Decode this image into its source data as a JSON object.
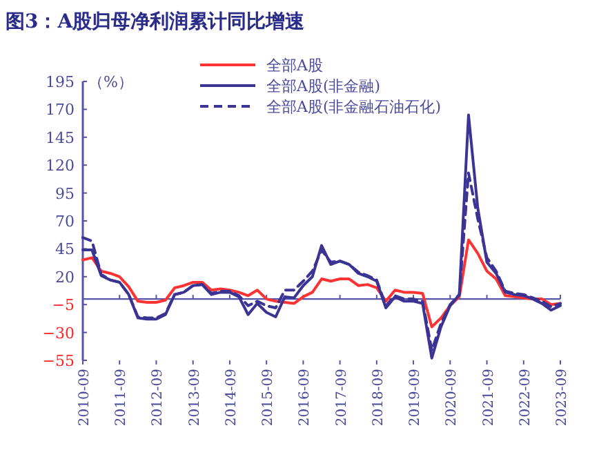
{
  "chart_data": {
    "type": "line",
    "title": "图3：A股归母净利润累计同比增速",
    "ylabel": "（%）",
    "x": [
      "2010-09",
      "2010-12",
      "2011-03",
      "2011-06",
      "2011-09",
      "2011-12",
      "2012-03",
      "2012-06",
      "2012-09",
      "2012-12",
      "2013-03",
      "2013-06",
      "2013-09",
      "2013-12",
      "2014-03",
      "2014-06",
      "2014-09",
      "2014-12",
      "2015-03",
      "2015-06",
      "2015-09",
      "2015-12",
      "2016-03",
      "2016-06",
      "2016-09",
      "2016-12",
      "2017-03",
      "2017-06",
      "2017-09",
      "2017-12",
      "2018-03",
      "2018-06",
      "2018-09",
      "2018-12",
      "2019-03",
      "2019-06",
      "2019-09",
      "2019-12",
      "2020-03",
      "2020-06",
      "2020-09",
      "2020-12",
      "2021-03",
      "2021-06",
      "2021-09",
      "2021-12",
      "2022-03",
      "2022-06",
      "2022-09",
      "2022-12",
      "2023-03",
      "2023-06",
      "2023-09"
    ],
    "series": [
      {
        "name": "全部A股",
        "color": "#ff3333",
        "line_style": "solid",
        "values": [
          35,
          37,
          25,
          23,
          20,
          11,
          -2,
          -3,
          -3,
          -1,
          10,
          12,
          15,
          15,
          8,
          9,
          8,
          6,
          3,
          8,
          0,
          -2,
          -3,
          -4,
          2,
          6,
          18,
          16,
          18,
          18,
          12,
          13,
          10,
          -2,
          8,
          6,
          6,
          5,
          -25,
          -17,
          -6,
          2,
          53,
          41,
          25,
          18,
          3,
          2,
          1,
          0,
          0,
          -5,
          -4
        ]
      },
      {
        "name": "全部A股(非金融)",
        "color": "#3b3494",
        "line_style": "solid",
        "values": [
          44,
          44,
          21,
          17,
          15,
          4,
          -17,
          -18,
          -18,
          -14,
          4,
          6,
          12,
          13,
          4,
          6,
          6,
          2,
          -14,
          -4,
          -12,
          -16,
          2,
          1,
          12,
          20,
          48,
          31,
          34,
          31,
          23,
          20,
          16,
          -8,
          2,
          -2,
          -2,
          -4,
          -53,
          -25,
          -6,
          4,
          165,
          82,
          33,
          23,
          6,
          4,
          3,
          0,
          -4,
          -10,
          -6
        ]
      },
      {
        "name": "全部A股(非金融石油石化)",
        "color": "#3b3494",
        "line_style": "dashed",
        "values": [
          55,
          52,
          22,
          17,
          15,
          4,
          -16,
          -17,
          -17,
          -13,
          4,
          6,
          12,
          13,
          5,
          7,
          7,
          3,
          -6,
          -2,
          -6,
          -8,
          8,
          8,
          16,
          25,
          44,
          33,
          34,
          31,
          24,
          21,
          17,
          -6,
          3,
          0,
          0,
          -2,
          -46,
          -22,
          -5,
          4,
          113,
          72,
          37,
          25,
          7,
          5,
          4,
          1,
          -2,
          -7,
          -4
        ]
      }
    ],
    "xlim": [
      "2010-09",
      "2023-09"
    ],
    "ylim": [
      -55,
      195
    ],
    "yticks": [
      -55,
      -30,
      -5,
      20,
      45,
      70,
      95,
      120,
      145,
      170,
      195
    ],
    "xticks": [
      "2010-09",
      "2011-09",
      "2012-09",
      "2013-09",
      "2014-09",
      "2015-09",
      "2016-09",
      "2017-09",
      "2018-09",
      "2019-09",
      "2020-09",
      "2021-09",
      "2022-09",
      "2023-09"
    ],
    "ref_lines": [
      {
        "axis": "y",
        "value": 0,
        "label": null,
        "color": "#5555a8"
      }
    ],
    "grid": false,
    "legend": "top right"
  }
}
